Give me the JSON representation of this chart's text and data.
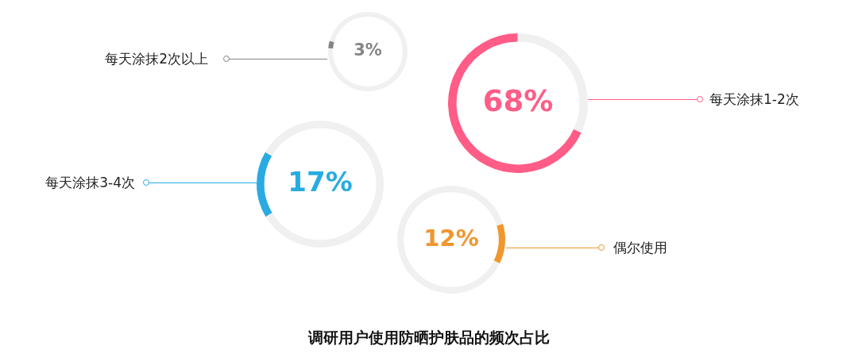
{
  "chart_data": [
    {
      "type": "donut",
      "categories": [
        "每天涂抹2次以上",
        null
      ],
      "values": [
        3,
        97
      ],
      "colors": [
        "#858585",
        "#f0f0f0"
      ],
      "value_labels": [
        "3%",
        null
      ]
    },
    {
      "type": "donut",
      "categories": [
        "每天涂抹1-2次",
        null
      ],
      "values": [
        68,
        32
      ],
      "colors": [
        "#ff5c87",
        "#f0f0f0"
      ],
      "value_labels": [
        "68%",
        null
      ]
    },
    {
      "type": "donut",
      "categories": [
        "每天涂抹3-4次",
        null
      ],
      "values": [
        17,
        83
      ],
      "colors": [
        "#29abe2",
        "#f0f0f0"
      ],
      "value_labels": [
        "17%",
        null
      ]
    },
    {
      "type": "donut",
      "categories": [
        "偶尔使用",
        null
      ],
      "values": [
        12,
        88
      ],
      "colors": [
        "#f0962e",
        "#f0f0f0"
      ],
      "value_labels": [
        "12%",
        null
      ]
    },
    {
      "type": "other",
      "title": "调研用户使用防晒护肤品的频次占比"
    }
  ]
}
